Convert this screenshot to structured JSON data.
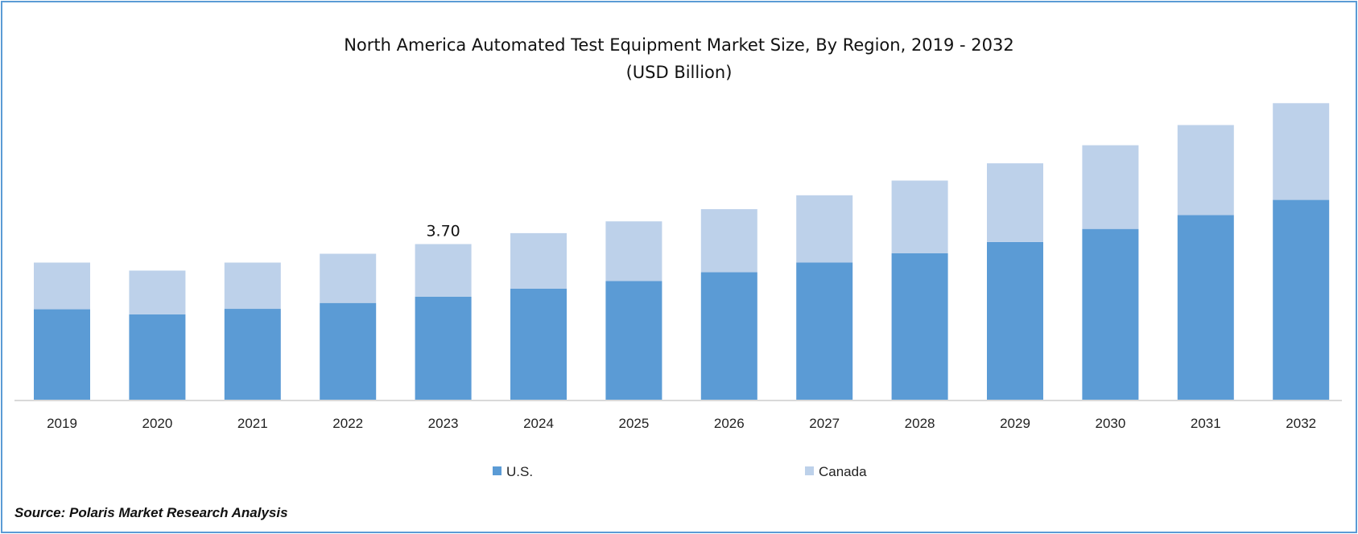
{
  "chart_data": {
    "type": "bar",
    "stacked": true,
    "title": "North America Automated Test Equipment Market  Size, By Region, 2019 - 2032",
    "subtitle": "(USD Billion)",
    "xlabel": "",
    "ylabel": "",
    "categories": [
      "2019",
      "2020",
      "2021",
      "2022",
      "2023",
      "2024",
      "2025",
      "2026",
      "2027",
      "2028",
      "2029",
      "2030",
      "2031",
      "2032"
    ],
    "series": [
      {
        "name": "U.S.",
        "color": "#5B9BD5",
        "values": [
          2.15,
          2.03,
          2.16,
          2.3,
          2.45,
          2.64,
          2.82,
          3.03,
          3.26,
          3.48,
          3.75,
          4.06,
          4.39,
          4.75
        ]
      },
      {
        "name": "Canada",
        "color": "#BDD1EA",
        "values": [
          1.11,
          1.04,
          1.1,
          1.17,
          1.25,
          1.32,
          1.42,
          1.5,
          1.6,
          1.73,
          1.87,
          1.99,
          2.14,
          2.3
        ]
      }
    ],
    "annotations": [
      {
        "category": "2023",
        "text": "3.70"
      }
    ],
    "ylim": [
      0,
      7.5
    ],
    "grid": false,
    "y_axis_visible": false,
    "legend": "bottom"
  },
  "source": "Source: Polaris Market Research Analysis"
}
